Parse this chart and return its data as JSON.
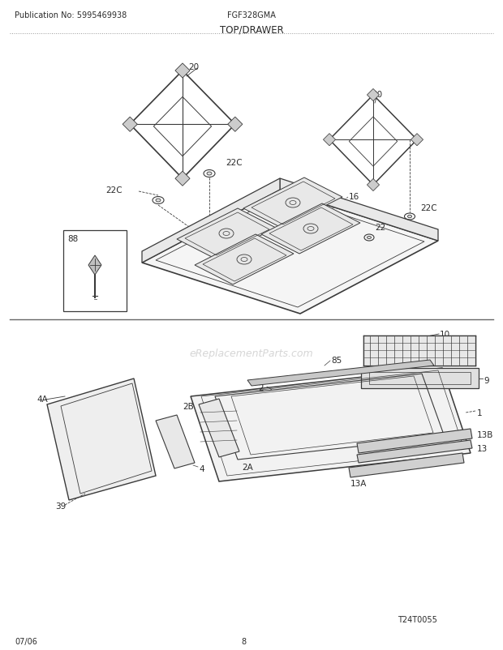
{
  "title": "TOP/DRAWER",
  "pub_no": "Publication No: 5995469938",
  "model": "FGF328GMA",
  "date": "07/06",
  "page": "8",
  "watermark": "eReplacementParts.com",
  "diagram_id": "T24T0055",
  "bg_color": "#ffffff",
  "line_color": "#3a3a3a",
  "text_color": "#2a2a2a",
  "fig_w": 6.2,
  "fig_h": 8.03,
  "dpi": 100
}
